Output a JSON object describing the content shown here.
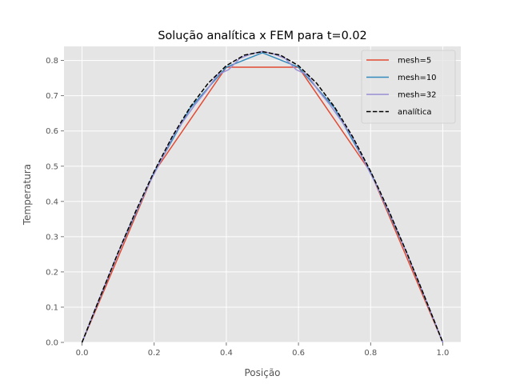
{
  "chart_data": {
    "type": "line",
    "title": "Solução analítica x FEM para t=0.02",
    "xlabel": "Posição",
    "ylabel": "Temperatura",
    "xlim": [
      -0.05,
      1.05
    ],
    "ylim": [
      0.0,
      0.84
    ],
    "xticks": [
      "0.0",
      "0.2",
      "0.4",
      "0.6",
      "0.8",
      "1.0"
    ],
    "yticks": [
      "0.0",
      "0.1",
      "0.2",
      "0.3",
      "0.4",
      "0.5",
      "0.6",
      "0.7",
      "0.8"
    ],
    "grid": true,
    "legend_position": "top-right",
    "style": "ggplot",
    "series": [
      {
        "name": "mesh=5",
        "color": "#E24A33",
        "dash": "solid",
        "x": [
          0.0,
          0.2,
          0.4,
          0.6,
          0.8,
          1.0
        ],
        "y": [
          0.0,
          0.483,
          0.781,
          0.781,
          0.483,
          0.0
        ]
      },
      {
        "name": "mesh=10",
        "color": "#348ABD",
        "dash": "solid",
        "x": [
          0.0,
          0.1,
          0.2,
          0.3,
          0.4,
          0.5,
          0.6,
          0.7,
          0.8,
          0.9,
          1.0
        ],
        "y": [
          0.0,
          0.254,
          0.483,
          0.665,
          0.781,
          0.822,
          0.781,
          0.665,
          0.483,
          0.254,
          0.0
        ]
      },
      {
        "name": "mesh=32",
        "color": "#988ED5",
        "dash": "solid",
        "x": [
          0.0,
          0.03125,
          0.0625,
          0.09375,
          0.125,
          0.15625,
          0.1875,
          0.21875,
          0.25,
          0.28125,
          0.3125,
          0.34375,
          0.375,
          0.40625,
          0.4375,
          0.46875,
          0.5,
          0.53125,
          0.5625,
          0.59375,
          0.625,
          0.65625,
          0.6875,
          0.71875,
          0.75,
          0.78125,
          0.8125,
          0.84375,
          0.875,
          0.90625,
          0.9375,
          0.96875,
          1.0
        ],
        "y": [
          0.0,
          0.0807,
          0.1603,
          0.2377,
          0.3146,
          0.3848,
          0.4534,
          0.5157,
          0.5812,
          0.6287,
          0.6738,
          0.7128,
          0.759,
          0.7739,
          0.8061,
          0.8186,
          0.826,
          0.8186,
          0.8061,
          0.7739,
          0.759,
          0.7128,
          0.6738,
          0.6287,
          0.5812,
          0.5157,
          0.4534,
          0.3848,
          0.3146,
          0.2377,
          0.1603,
          0.0807,
          0.0
        ]
      },
      {
        "name": "analítica",
        "color": "#000000",
        "dash": "dashed",
        "x": [
          0.0,
          0.05,
          0.1,
          0.15,
          0.2,
          0.25,
          0.3,
          0.35,
          0.4,
          0.45,
          0.5,
          0.55,
          0.6,
          0.65,
          0.7,
          0.75,
          0.8,
          0.85,
          0.9,
          0.95,
          1.0
        ],
        "y": [
          0.0,
          0.1291,
          0.2552,
          0.3748,
          0.4854,
          0.584,
          0.668,
          0.7359,
          0.7853,
          0.8153,
          0.825,
          0.8153,
          0.7853,
          0.7359,
          0.668,
          0.584,
          0.4854,
          0.3748,
          0.2552,
          0.1291,
          0.0
        ]
      }
    ]
  }
}
